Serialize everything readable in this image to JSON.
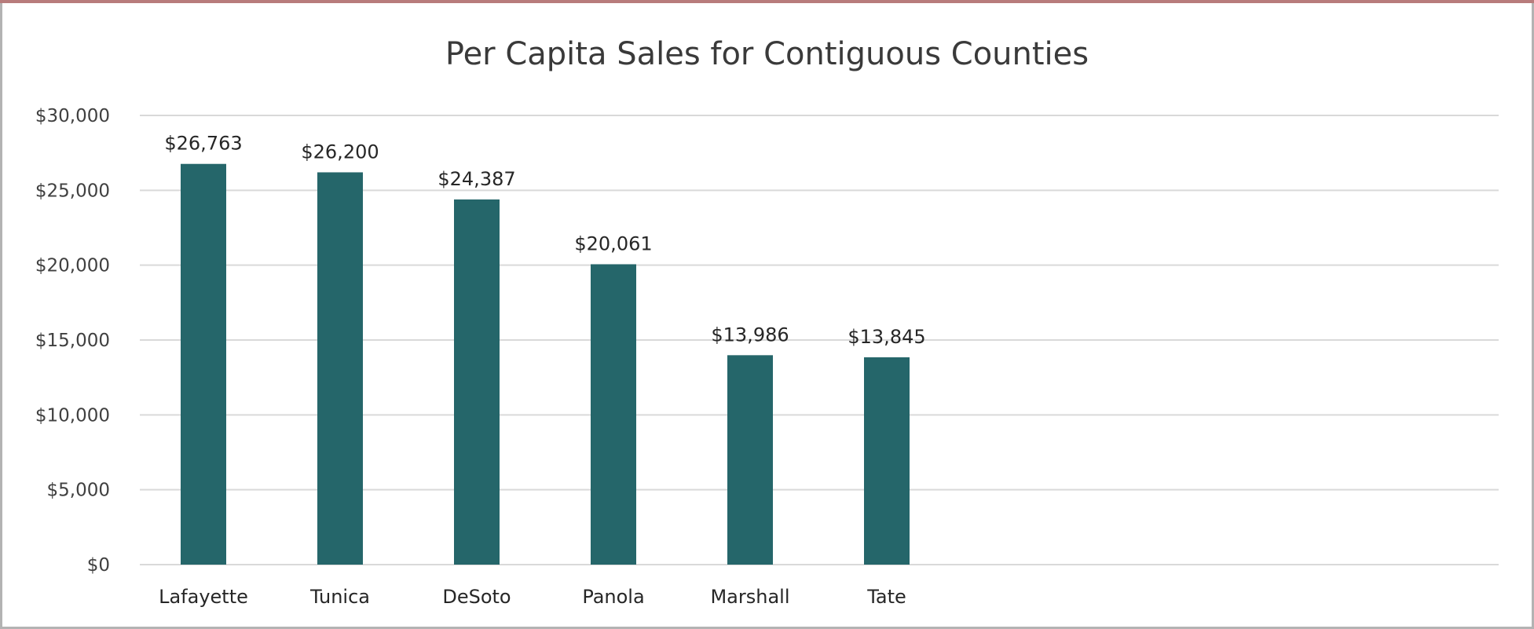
{
  "chart_data": {
    "type": "bar",
    "title": "Per Capita Sales for Contiguous Counties",
    "xlabel": "",
    "ylabel": "",
    "categories": [
      "Lafayette",
      "Tunica",
      "DeSoto",
      "Panola",
      "Marshall",
      "Tate"
    ],
    "values": [
      26763,
      26200,
      24387,
      20061,
      13986,
      13845
    ],
    "data_labels": [
      "$26,763",
      "$26,200",
      "$24,387",
      "$20,061",
      "$13,986",
      "$13,845"
    ],
    "ylim": [
      0,
      30000
    ],
    "yticks": [
      0,
      5000,
      10000,
      15000,
      20000,
      25000,
      30000
    ],
    "ytick_labels": [
      "$0",
      "$5,000",
      "$10,000",
      "$15,000",
      "$20,000",
      "$25,000",
      "$30,000"
    ],
    "grid": true,
    "legend": "none",
    "bar_color": "#25666a",
    "grid_color": "#d9d9d9"
  }
}
